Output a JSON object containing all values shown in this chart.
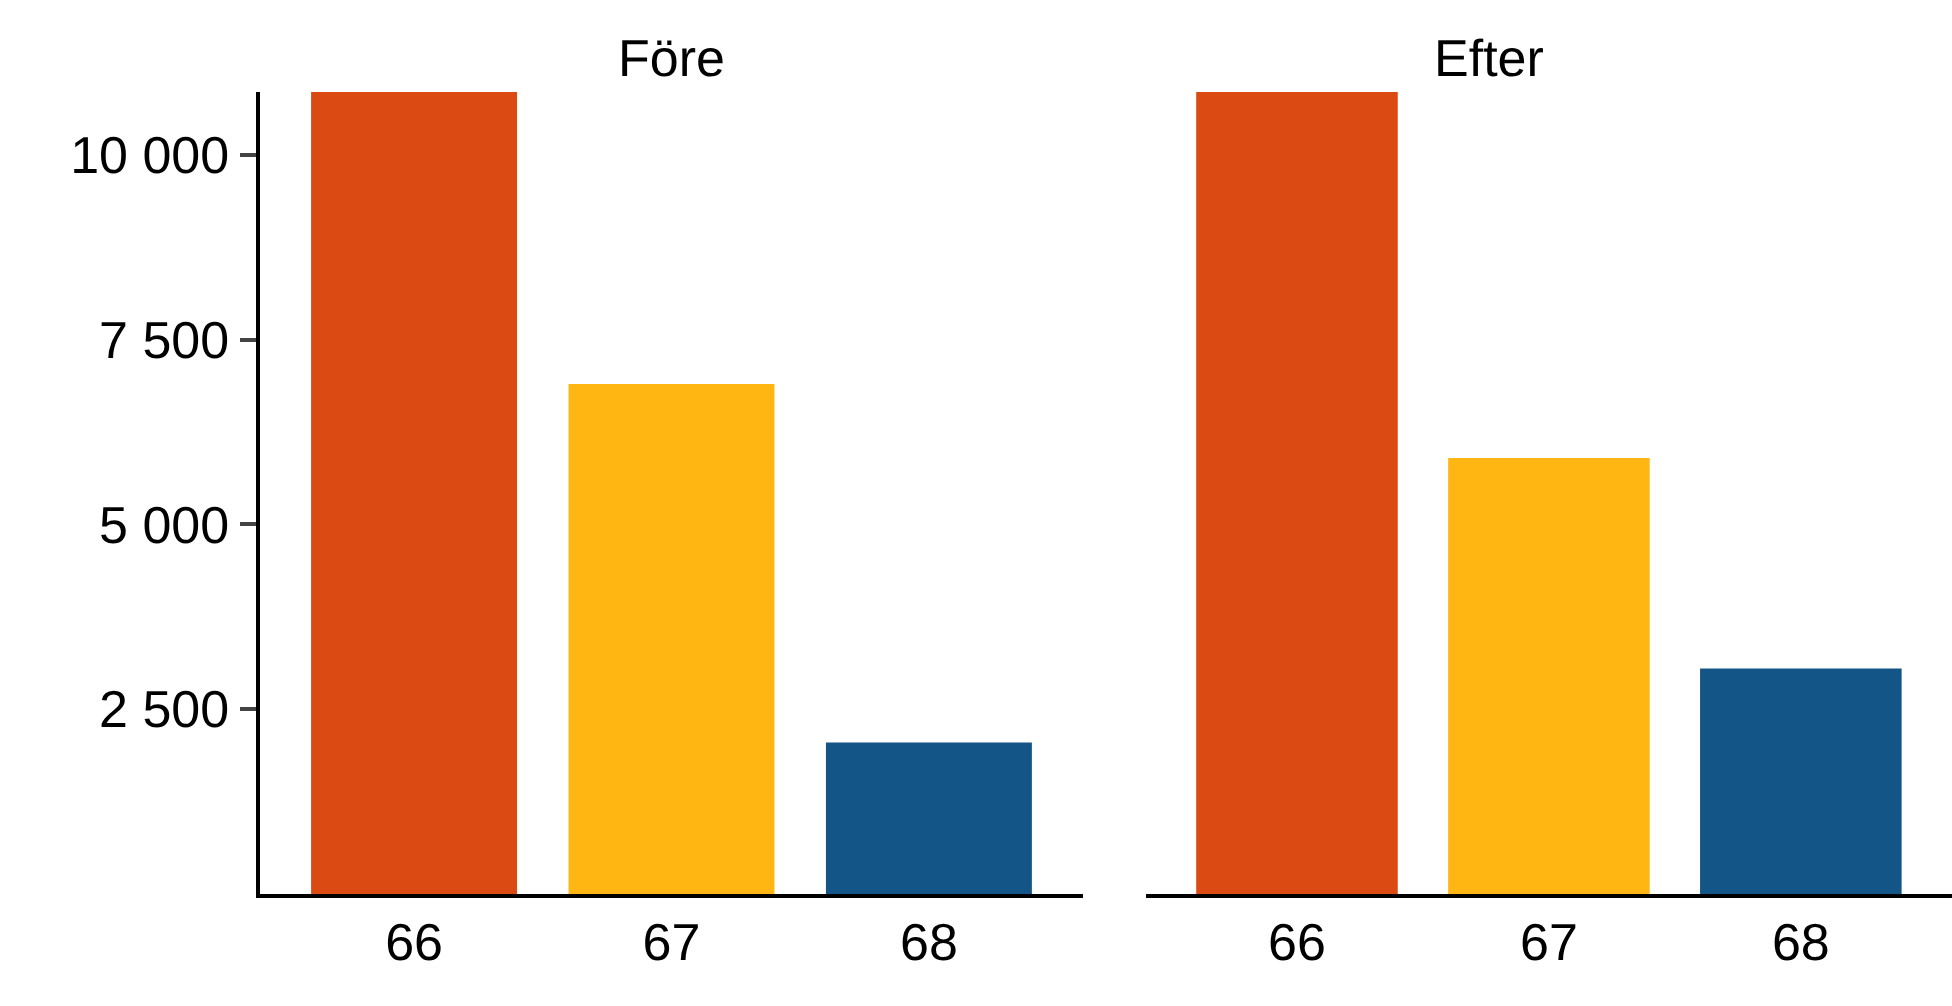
{
  "chart_data": [
    {
      "type": "bar",
      "title": "Före",
      "categories": [
        "66",
        "67",
        "68"
      ],
      "colors": [
        "#dc4a14",
        "#ffb612",
        "#135586"
      ],
      "values": [
        10850,
        6900,
        2050
      ],
      "ylim": [
        0,
        10850
      ],
      "yticks": [
        {
          "value": 2500,
          "label": "2 500"
        },
        {
          "value": 5000,
          "label": "5 000"
        },
        {
          "value": 7500,
          "label": "7 500"
        },
        {
          "value": 10000,
          "label": "10 000"
        }
      ]
    },
    {
      "type": "bar",
      "title": "Efter",
      "categories": [
        "66",
        "67",
        "68"
      ],
      "colors": [
        "#dc4a14",
        "#ffb612",
        "#135586"
      ],
      "values": [
        10850,
        5900,
        3050
      ],
      "ylim": [
        0,
        10850
      ],
      "tick_labels": "x"
    }
  ]
}
